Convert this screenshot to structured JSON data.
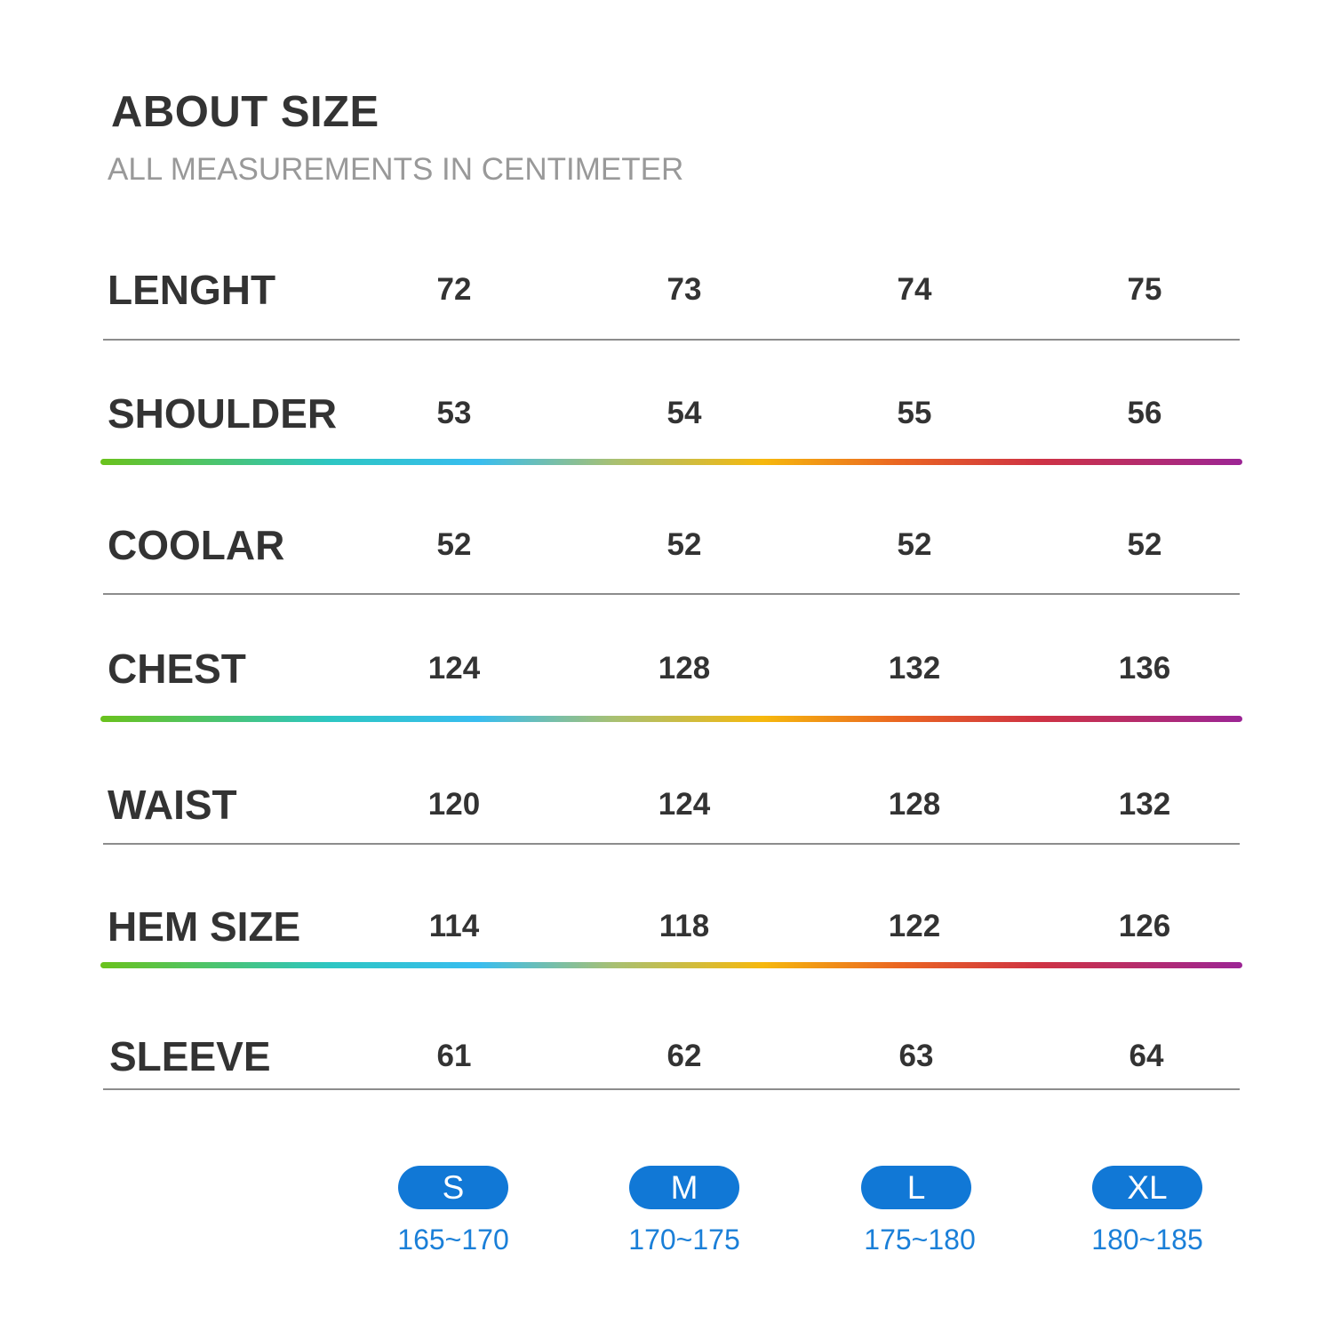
{
  "header": {
    "title": "ABOUT SIZE",
    "subtitle": "ALL MEASUREMENTS IN CENTIMETER"
  },
  "rows": [
    {
      "label": "LENGHT",
      "values": [
        "72",
        "73",
        "74",
        "75"
      ]
    },
    {
      "label": "SHOULDER",
      "values": [
        "53",
        "54",
        "55",
        "56"
      ]
    },
    {
      "label": "COOLAR",
      "values": [
        "52",
        "52",
        "52",
        "52"
      ]
    },
    {
      "label": "CHEST",
      "values": [
        "124",
        "128",
        "132",
        "136"
      ]
    },
    {
      "label": "WAIST",
      "values": [
        "120",
        "124",
        "128",
        "132"
      ]
    },
    {
      "label": "HEM SIZE",
      "values": [
        "114",
        "118",
        "122",
        "126"
      ]
    },
    {
      "label": "SLEEVE",
      "values": [
        "61",
        "62",
        "63",
        "64"
      ]
    }
  ],
  "sizes": [
    {
      "label": "S",
      "range": "165~170"
    },
    {
      "label": "M",
      "range": "170~175"
    },
    {
      "label": "L",
      "range": "175~180"
    },
    {
      "label": "XL",
      "range": "180~185"
    }
  ],
  "colors": {
    "heading_text": "#333333",
    "subtitle_text": "#999999",
    "size_pill": "#1178d6",
    "size_range_text": "#1a7fd8",
    "divider_gray": "#8c8c8c",
    "rainbow": [
      "#6ac21c",
      "#38bdf0",
      "#f6b80d",
      "#ea6522",
      "#cf3343",
      "#9c2595"
    ]
  }
}
